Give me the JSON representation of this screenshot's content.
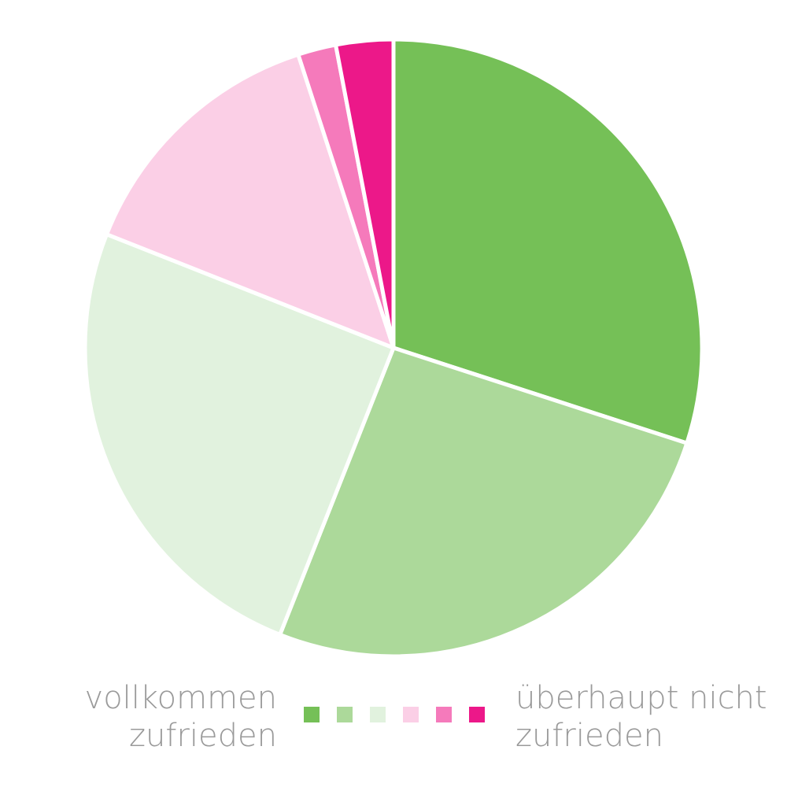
{
  "chart_data": {
    "type": "pie",
    "categories": [
      null,
      null,
      null,
      null,
      null,
      null
    ],
    "values": [
      30,
      26,
      25,
      14,
      2,
      3
    ],
    "colors": [
      "#75c057",
      "#acd99a",
      "#e1f2de",
      "#fbcfe6",
      "#f57abb",
      "#ec1889"
    ],
    "legend_left": [
      "vollkommen",
      "zufrieden"
    ],
    "legend_right": [
      "überhaupt nicht",
      "zufrieden"
    ]
  }
}
